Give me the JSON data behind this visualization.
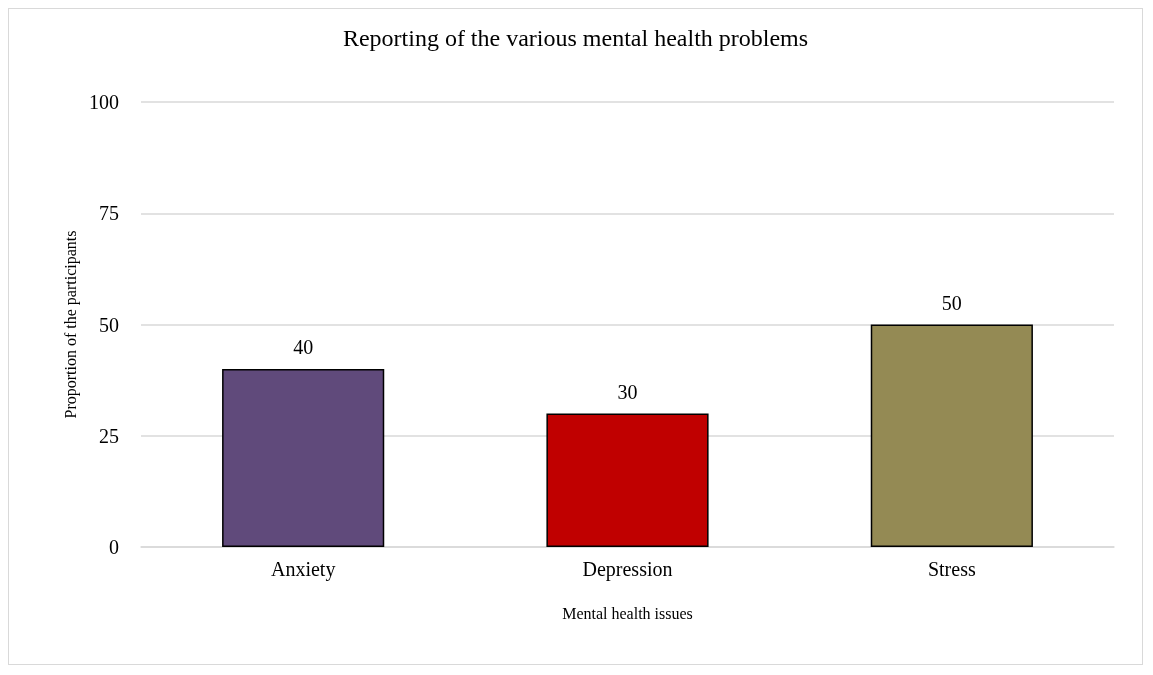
{
  "chart_data": {
    "type": "bar",
    "title": "Reporting of the various mental health problems",
    "xlabel": "Mental health issues",
    "ylabel": "Proportion of the participants",
    "categories": [
      "Anxiety",
      "Depression",
      "Stress"
    ],
    "values": [
      40,
      30,
      50
    ],
    "colors": [
      "#604a7b",
      "#c00000",
      "#948a54"
    ],
    "ylim": [
      0,
      100
    ],
    "yticks": [
      0,
      25,
      50,
      75,
      100
    ],
    "grid": "y",
    "data_labels": true
  }
}
